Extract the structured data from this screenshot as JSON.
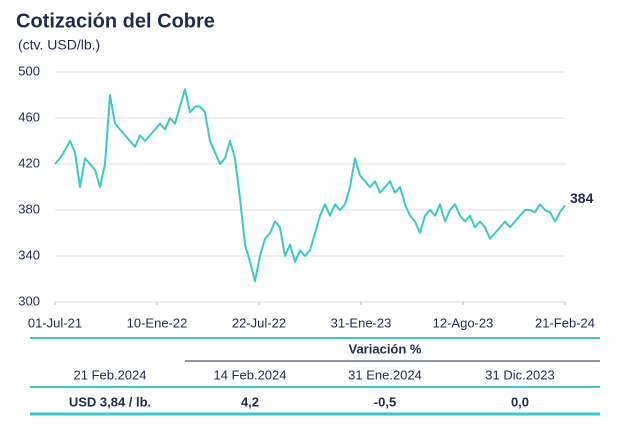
{
  "chart_data": {
    "type": "line",
    "title": "Cotización del Cobre",
    "subtitle": "(ctv. USD/lb.)",
    "color": "#3cc8c8",
    "values": [
      420,
      425,
      432,
      440,
      430,
      400,
      425,
      420,
      415,
      400,
      420,
      480,
      455,
      450,
      445,
      440,
      435,
      445,
      440,
      445,
      450,
      455,
      450,
      460,
      455,
      470,
      485,
      465,
      470,
      470,
      465,
      440,
      430,
      420,
      425,
      440,
      425,
      390,
      350,
      335,
      318,
      340,
      355,
      360,
      370,
      365,
      340,
      350,
      335,
      345,
      340,
      345,
      360,
      375,
      385,
      375,
      385,
      380,
      385,
      400,
      425,
      410,
      405,
      400,
      405,
      395,
      400,
      405,
      395,
      400,
      385,
      375,
      370,
      360,
      375,
      380,
      375,
      385,
      370,
      380,
      385,
      375,
      370,
      375,
      365,
      370,
      365,
      355,
      360,
      365,
      370,
      365,
      370,
      375,
      380,
      380,
      378,
      385,
      380,
      378,
      370,
      378,
      384
    ],
    "xlim": [
      0,
      102
    ],
    "xticks": [
      {
        "value": 0,
        "label": "01-Jul-21"
      },
      {
        "value": 20.4,
        "label": "10-Ene-22"
      },
      {
        "value": 40.8,
        "label": "22-Jul-22"
      },
      {
        "value": 61.2,
        "label": "31-Ene-23"
      },
      {
        "value": 81.6,
        "label": "12-Ago-23"
      },
      {
        "value": 102,
        "label": "21-Feb-24"
      }
    ],
    "ylim": [
      300,
      500
    ],
    "yticks": [
      300,
      340,
      380,
      420,
      460,
      500
    ],
    "grid": true
  },
  "table": {
    "group_header": "Variación %",
    "headers": [
      "21 Feb.2024",
      "14 Feb.2024",
      "31 Ene.2024",
      "31 Dic.2023"
    ],
    "row": [
      "USD 3,84 / lb.",
      "4,2",
      "-0,5",
      "0,0"
    ]
  }
}
